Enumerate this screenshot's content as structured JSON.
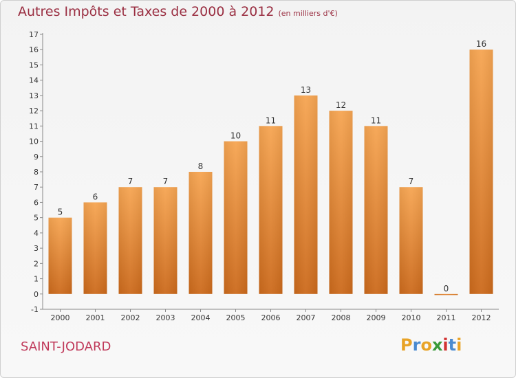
{
  "title": "Autres Impôts et Taxes de 2000 à 2012",
  "subtitle": "(en milliers d'€)",
  "city": "SAINT-JODARD",
  "logo": {
    "letters": [
      "P",
      "r",
      "o",
      "x",
      "i",
      "t",
      "i"
    ],
    "colors": [
      "#e8a327",
      "#4a8ad0",
      "#e8a327",
      "#3a9a3a",
      "#d23232",
      "#4a8ad0",
      "#e8a327"
    ]
  },
  "colors": {
    "bar": "#f0953e",
    "title": "#9a2f42",
    "city": "#c0395a"
  },
  "chart_data": {
    "type": "bar",
    "title": "Autres Impôts et Taxes de 2000 à 2012",
    "subtitle": "(en milliers d'€)",
    "categories": [
      "2000",
      "2001",
      "2002",
      "2003",
      "2004",
      "2005",
      "2006",
      "2007",
      "2008",
      "2009",
      "2010",
      "2011",
      "2012"
    ],
    "values": [
      5,
      6,
      7,
      7,
      8,
      10,
      11,
      13,
      12,
      11,
      7,
      0,
      16
    ],
    "ylim": [
      -1,
      17
    ],
    "yticks": [
      -1,
      0,
      1,
      2,
      3,
      4,
      5,
      6,
      7,
      8,
      9,
      10,
      11,
      12,
      13,
      14,
      15,
      16,
      17
    ],
    "grid": false,
    "xlabel": "",
    "ylabel": ""
  }
}
